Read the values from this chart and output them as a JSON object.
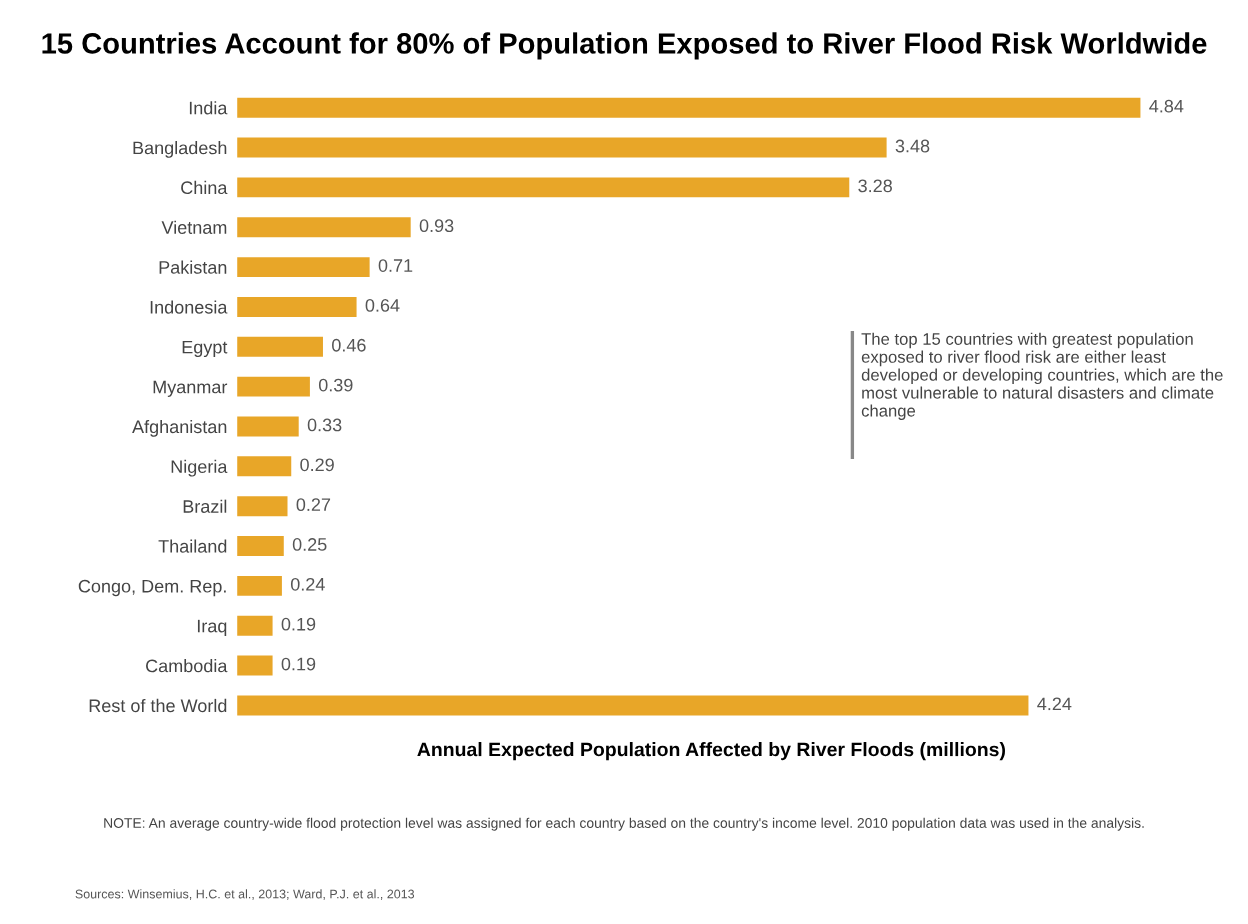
{
  "chart_data": {
    "type": "bar",
    "orientation": "horizontal",
    "title": "15 Countries Account for 80% of Population Exposed to River Flood Risk Worldwide",
    "xlabel": "Annual Expected Population Affected by River Floods (millions)",
    "categories": [
      "India",
      "Bangladesh",
      "China",
      "Vietnam",
      "Pakistan",
      "Indonesia",
      "Egypt",
      "Myanmar",
      "Afghanistan",
      "Nigeria",
      "Brazil",
      "Thailand",
      "Congo, Dem. Rep.",
      "Iraq",
      "Cambodia",
      "Rest of the World"
    ],
    "values": [
      4.84,
      3.48,
      3.28,
      0.93,
      0.71,
      0.64,
      0.46,
      0.39,
      0.33,
      0.29,
      0.27,
      0.25,
      0.24,
      0.19,
      0.19,
      4.24
    ],
    "color": "#e8a628",
    "data_labels": true,
    "tick_labels": "y",
    "grid": false,
    "legend": false,
    "annotations": [
      "The top 15 countries with greatest population exposed to river flood risk are either least developed or developing countries, which are the most vulnerable to natural disasters and climate change",
      "NOTE: An average country-wide flood protection level was assigned for each country based on the country's income level. 2010 population data was used in the analysis.",
      "Sources: Winsemius, H.C. et al., 2013; Ward, P.J. et al., 2013"
    ]
  }
}
